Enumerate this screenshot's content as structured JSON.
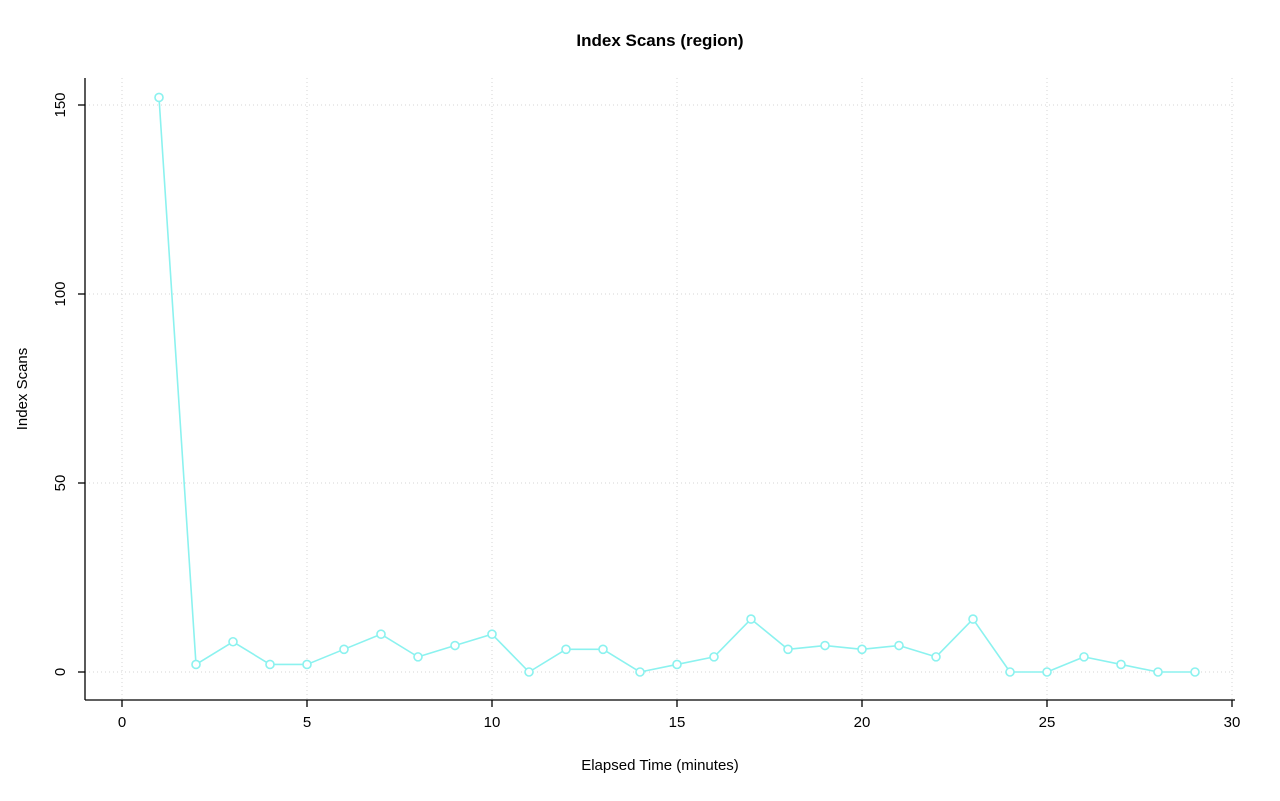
{
  "page": {
    "background": "#ffffff"
  },
  "chart": {
    "title": "Index Scans (region)",
    "xlabel": "Elapsed Time (minutes)",
    "ylabel": "Index Scans"
  },
  "chart_data": {
    "type": "line",
    "title": "Index Scans (region)",
    "xlabel": "Elapsed Time (minutes)",
    "ylabel": "Index Scans",
    "x": [
      1,
      2,
      3,
      4,
      5,
      6,
      7,
      8,
      9,
      10,
      11,
      12,
      13,
      14,
      15,
      16,
      17,
      18,
      19,
      20,
      21,
      22,
      23,
      24,
      25,
      26,
      27,
      28,
      29
    ],
    "values": [
      152,
      2,
      8,
      2,
      2,
      6,
      10,
      4,
      7,
      10,
      0,
      6,
      6,
      0,
      2,
      4,
      14,
      6,
      7,
      6,
      7,
      4,
      14,
      0,
      0,
      4,
      2,
      0,
      0
    ],
    "xlim": [
      0,
      30
    ],
    "ylim": [
      0,
      150
    ],
    "xticks": [
      0,
      5,
      10,
      15,
      20,
      25,
      30
    ],
    "yticks": [
      0,
      50,
      100,
      150
    ],
    "grid": true,
    "legend_position": "none",
    "marker": "open-circle",
    "colors": {
      "series": "#8BF2EF",
      "grid": "#d6d6d6",
      "axis": "#000000",
      "text": "#000000"
    }
  }
}
